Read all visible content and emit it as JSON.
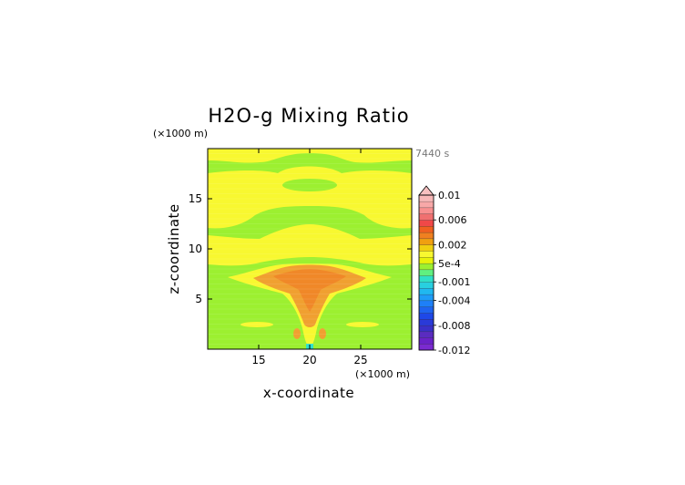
{
  "chart_data": {
    "type": "heatmap",
    "title": "H2O-g Mixing Ratio",
    "xlabel": "x-coordinate",
    "ylabel": "z-coordinate",
    "x_unit": "(×1000 m)",
    "y_unit": "(×1000 m)",
    "time_label": "7440 s",
    "xlim": [
      10,
      30
    ],
    "ylim": [
      0,
      20
    ],
    "x_ticks": [
      "15",
      "20",
      "25"
    ],
    "y_ticks": [
      "5",
      "10",
      "15"
    ],
    "colorbar": {
      "labels": [
        "0.01",
        "0.006",
        "0.002",
        "5e-4",
        "-0.001",
        "-0.004",
        "-0.008",
        "-0.012"
      ],
      "levels": [
        -0.012,
        -0.011,
        -0.01,
        -0.009,
        -0.008,
        -0.007,
        -0.006,
        -0.005,
        -0.004,
        -0.003,
        -0.002,
        -0.001,
        -0.0005,
        0,
        0.0005,
        0.001,
        0.0015,
        0.002,
        0.003,
        0.004,
        0.005,
        0.006,
        0.007,
        0.008,
        0.009,
        0.01
      ],
      "colors": [
        "#7a2ad0",
        "#6a22c8",
        "#5a2cc0",
        "#3a30c8",
        "#2a3ad8",
        "#1e48e8",
        "#1e64f0",
        "#1e80f8",
        "#1e9cf8",
        "#20b8f0",
        "#28d0e0",
        "#30e0c8",
        "#60f080",
        "#9cf030",
        "#e8f20a",
        "#f8f830",
        "#f0d010",
        "#f0a010",
        "#f08020",
        "#f06020",
        "#f04848",
        "#f07070",
        "#f89090",
        "#f8a8a8",
        "#f8b8b8"
      ],
      "extend_color": "#f8c0c0"
    },
    "field_description_values": {
      "background": 0.0003,
      "moist_layer": 0.001,
      "core": 0.0025,
      "edge": -0.0002
    },
    "bands": [
      {
        "name": "band-top",
        "z": [
          18.6,
          20.0
        ],
        "x": [
          10,
          30
        ],
        "value": 0.0003
      },
      {
        "name": "band-upper",
        "z": [
          11.0,
          18.4
        ],
        "x": [
          10,
          30
        ],
        "value": 0.001
      },
      {
        "name": "band-mid",
        "z": [
          6.0,
          11.0
        ],
        "x": [
          10,
          30
        ],
        "value": 0.001
      }
    ]
  }
}
